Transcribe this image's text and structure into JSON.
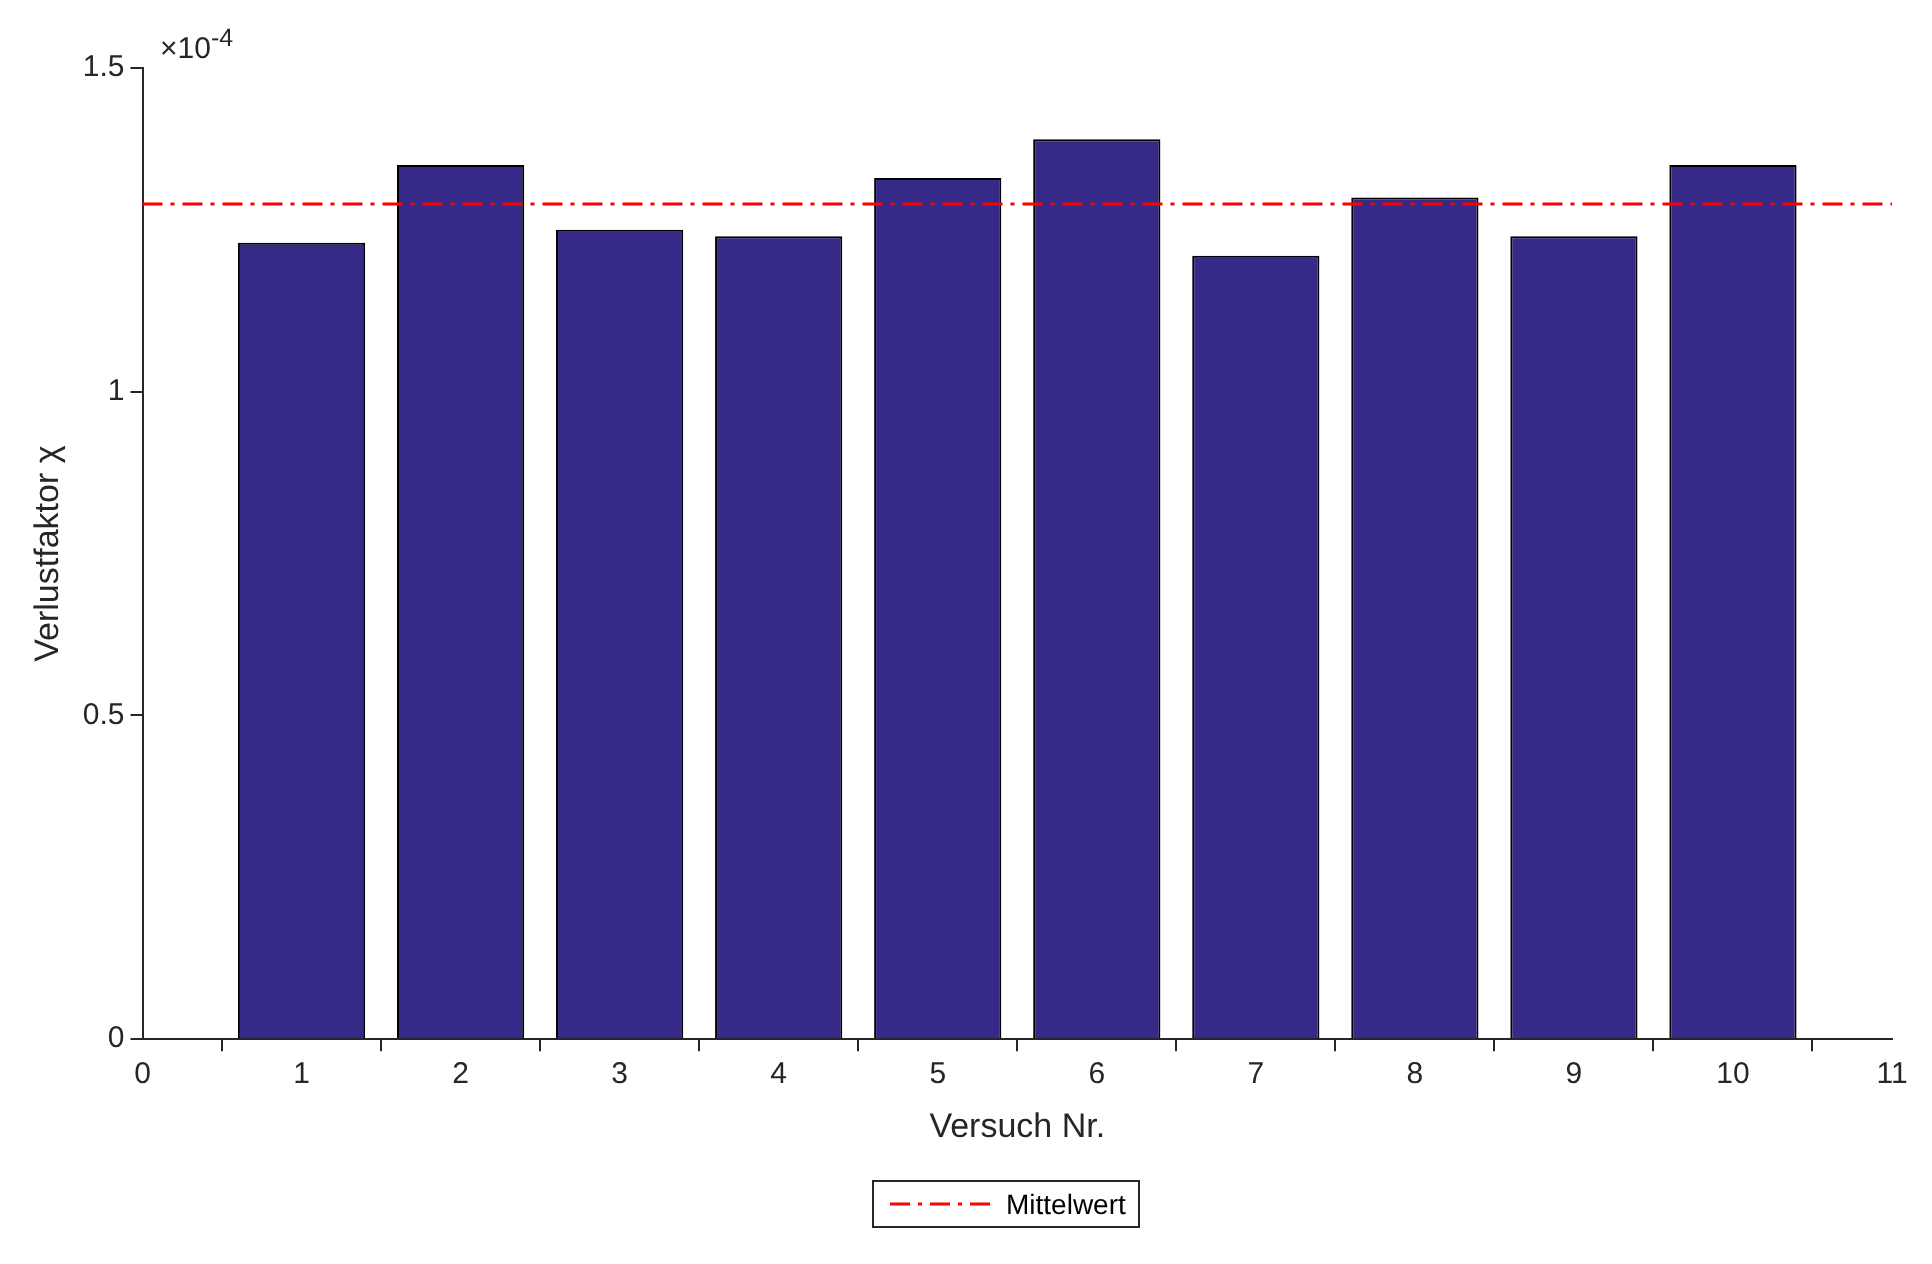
{
  "chart_data": {
    "type": "bar",
    "xlabel": "Versuch Nr.",
    "ylabel": "Verlustfaktor χ",
    "annotations": [
      "×10$^{-4}$"
    ],
    "x": [
      1,
      2,
      3,
      4,
      5,
      6,
      7,
      8,
      9,
      10
    ],
    "values": [
      1.23,
      1.35,
      1.25,
      1.24,
      1.33,
      1.39,
      1.21,
      1.3,
      1.24,
      1.35
    ],
    "color": "#352a87",
    "xlim": [
      0,
      11
    ],
    "xticks": [
      0,
      1,
      2,
      3,
      4,
      5,
      6,
      7,
      8,
      9,
      10,
      11
    ],
    "ylim": [
      0,
      1.5
    ],
    "yticks": [
      0,
      0.5,
      1,
      1.5
    ],
    "ref_lines": [
      {
        "axis": "y",
        "value": 1.29,
        "label": "Mittelwert",
        "color": "#ff0000",
        "line_style": "dashdot"
      }
    ],
    "grid": false,
    "legend": "bottom"
  }
}
